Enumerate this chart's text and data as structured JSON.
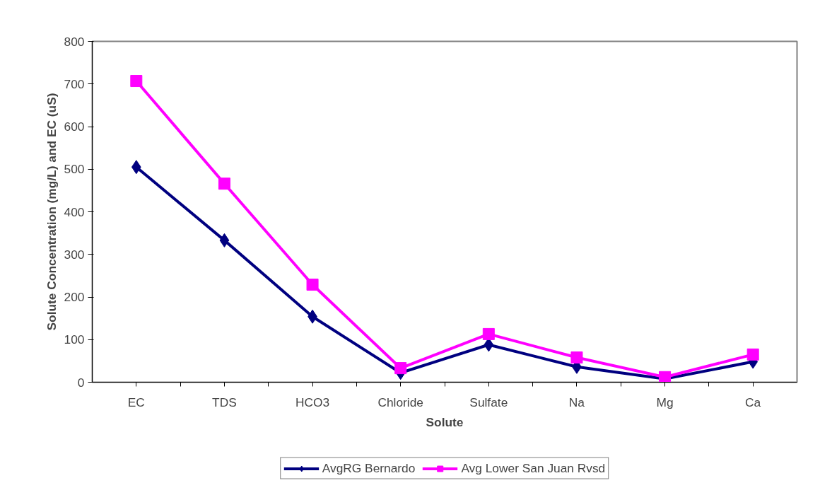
{
  "chart_data": {
    "type": "line",
    "xlabel": "Solute",
    "ylabel": "Solute Concentration (mg/L) and EC (uS)",
    "categories": [
      "EC",
      "TDS",
      "HCO3",
      "Chloride",
      "Sulfate",
      "Na",
      "Mg",
      "Ca"
    ],
    "series": [
      {
        "name": "AvgRG Bernardo",
        "color": "#000080",
        "marker": "diamond",
        "values": [
          505,
          333,
          154,
          22,
          88,
          36,
          8,
          48
        ]
      },
      {
        "name": "Avg Lower San Juan Rvsd",
        "color": "#ff00ff",
        "marker": "square",
        "values": [
          707,
          466,
          229,
          33,
          113,
          58,
          12,
          65
        ]
      }
    ],
    "ylim": [
      0,
      800
    ],
    "yticks": [
      0,
      100,
      200,
      300,
      400,
      500,
      600,
      700,
      800
    ],
    "grid": false,
    "legend": "bottom"
  }
}
